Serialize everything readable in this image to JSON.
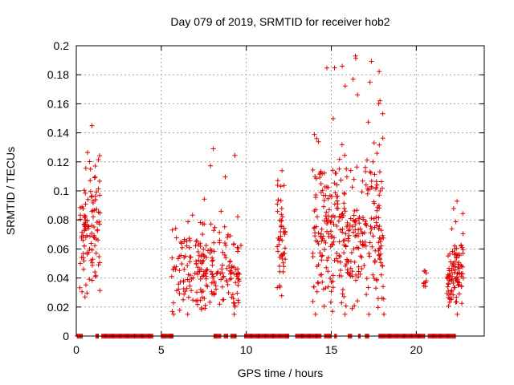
{
  "chart_data": {
    "type": "scatter",
    "title": "Day 079 of 2019, SRMTID for receiver hob2",
    "xlabel": "GPS time / hours",
    "ylabel": "SRMTID / TECUs",
    "xlim": [
      0,
      24
    ],
    "ylim": [
      0,
      0.2
    ],
    "xticks": [
      0,
      5,
      10,
      15,
      20
    ],
    "yticks": [
      0,
      0.02,
      0.04,
      0.06,
      0.08,
      0.1,
      0.12,
      0.14,
      0.16,
      0.18,
      0.2
    ],
    "xtick_labels": [
      "0",
      "5",
      "10",
      "15",
      "20"
    ],
    "ytick_labels": [
      "0",
      "0.02",
      "0.04",
      "0.06",
      "0.08",
      "0.1",
      "0.12",
      "0.14",
      "0.16",
      "0.18",
      "0.2"
    ],
    "grid": true,
    "marker": "+",
    "color": "#e00000",
    "zero_intervals": [
      [
        0.05,
        0.35
      ],
      [
        1.15,
        1.3
      ],
      [
        1.5,
        4.5
      ],
      [
        5.0,
        5.7
      ],
      [
        8.1,
        8.5
      ],
      [
        8.7,
        8.9
      ],
      [
        9.1,
        9.4
      ],
      [
        9.9,
        12.5
      ],
      [
        12.9,
        14.4
      ],
      [
        14.6,
        15.0
      ],
      [
        15.2,
        15.3
      ],
      [
        16.0,
        16.2
      ],
      [
        16.6,
        16.7
      ],
      [
        17.0,
        17.2
      ],
      [
        17.8,
        20.5
      ],
      [
        20.7,
        22.3
      ]
    ],
    "clusters": [
      {
        "start": 0.2,
        "end": 1.4,
        "mean": 0.075,
        "spread": 0.022,
        "max": 0.145,
        "count": 110
      },
      {
        "start": 5.6,
        "end": 9.7,
        "mean": 0.045,
        "spread": 0.014,
        "max": 0.129,
        "count": 230
      },
      {
        "start": 11.8,
        "end": 12.3,
        "mean": 0.065,
        "spread": 0.022,
        "max": 0.114,
        "count": 50
      },
      {
        "start": 13.9,
        "end": 18.1,
        "mean": 0.07,
        "spread": 0.025,
        "max": 0.193,
        "count": 360
      },
      {
        "start": 20.4,
        "end": 20.6,
        "mean": 0.04,
        "spread": 0.006,
        "max": 0.045,
        "count": 8
      },
      {
        "start": 21.8,
        "end": 22.8,
        "mean": 0.045,
        "spread": 0.012,
        "max": 0.093,
        "count": 100
      }
    ]
  }
}
